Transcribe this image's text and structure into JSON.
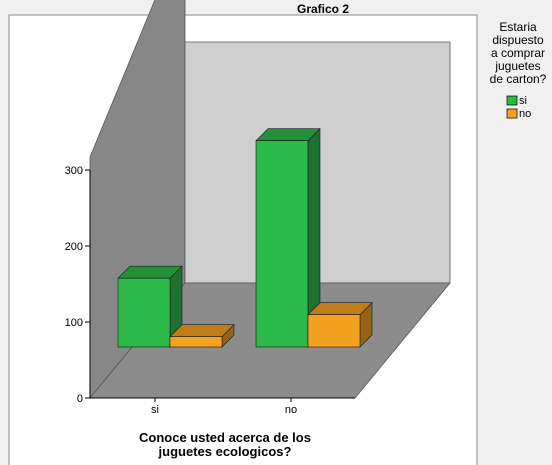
{
  "chart_data": {
    "type": "bar",
    "title": "Grafico 2",
    "subtitle": "",
    "xlabel_lines": [
      "Conoce usted acerca de los",
      "juguetes ecologicos?"
    ],
    "ylabel": "",
    "categories": [
      "si",
      "no"
    ],
    "series": [
      {
        "name": "si",
        "values": [
          100,
          300
        ]
      },
      {
        "name": "no",
        "values": [
          15,
          47
        ]
      }
    ],
    "ylim": [
      0,
      300
    ],
    "yticks": [
      0,
      100,
      200,
      300
    ],
    "grid": false,
    "projection": "3d",
    "legend": {
      "title_lines": [
        "Estaria",
        "dispuesto",
        "a comprar",
        "juguetes",
        "de carton?"
      ],
      "placement": "top-right"
    },
    "colors": {
      "series": [
        "#2db84a",
        "#f4a020"
      ],
      "floor": "#8c8c8c",
      "side_wall": "#878787",
      "back_wall": "#cfcfcf",
      "page": "#f0f0f0",
      "plot_bg": "#ffffff"
    }
  }
}
